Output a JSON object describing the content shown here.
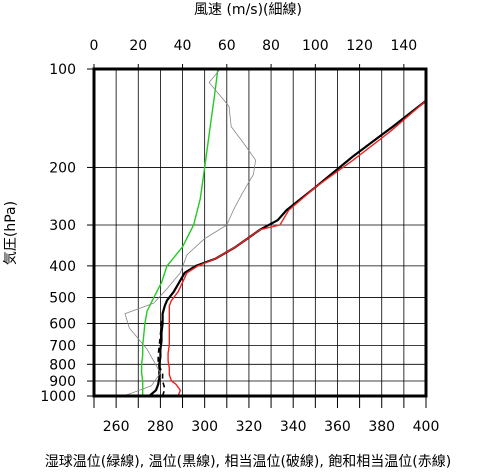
{
  "chart_data": {
    "type": "line",
    "top_axis": {
      "label": "風速 (m/s)(細線)",
      "range": [
        0,
        150
      ],
      "ticks": [
        0,
        20,
        40,
        60,
        80,
        100,
        120,
        140
      ]
    },
    "bottom_axis": {
      "label": "湿球温位(緑線), 温位(黒線), 相当温位(破線), 飽和相当温位(赤線)",
      "range": [
        250,
        400
      ],
      "ticks": [
        260,
        280,
        300,
        320,
        340,
        360,
        380,
        400
      ],
      "minor_gridlines": [
        250,
        270,
        290,
        310,
        330,
        350,
        370,
        390
      ]
    },
    "y_axis": {
      "label": "気圧(hPa)",
      "scale": "log",
      "reversed": true,
      "range": [
        100,
        1000
      ],
      "ticks": [
        100,
        200,
        300,
        400,
        500,
        600,
        700,
        800,
        900,
        1000
      ]
    },
    "grid": true,
    "series": [
      {
        "name": "湿球温位",
        "color": "#22cc22",
        "style": "solid",
        "axis": "bottom",
        "points": [
          [
            272,
            1000
          ],
          [
            272,
            950
          ],
          [
            272,
            900
          ],
          [
            271.5,
            850
          ],
          [
            271.5,
            800
          ],
          [
            272,
            750
          ],
          [
            272,
            700
          ],
          [
            272.5,
            650
          ],
          [
            273,
            600
          ],
          [
            274,
            550
          ],
          [
            277,
            500
          ],
          [
            280.5,
            450
          ],
          [
            283,
            400
          ],
          [
            290,
            350
          ],
          [
            295,
            300
          ],
          [
            298,
            250
          ],
          [
            300,
            200
          ],
          [
            302.5,
            150
          ],
          [
            304.5,
            120
          ],
          [
            306,
            100
          ]
        ]
      },
      {
        "name": "温位",
        "color": "#000000",
        "style": "solid",
        "axis": "bottom",
        "points": [
          [
            275,
            1000
          ],
          [
            278,
            960
          ],
          [
            279,
            920
          ],
          [
            279.5,
            880
          ],
          [
            279.5,
            840
          ],
          [
            279.5,
            800
          ],
          [
            280,
            760
          ],
          [
            280,
            720
          ],
          [
            280.5,
            680
          ],
          [
            280.5,
            640
          ],
          [
            281,
            600
          ],
          [
            281,
            560
          ],
          [
            282,
            530
          ],
          [
            283,
            510
          ],
          [
            286,
            480
          ],
          [
            291,
            420
          ],
          [
            296,
            400
          ],
          [
            305,
            380
          ],
          [
            314,
            350
          ],
          [
            325,
            310
          ],
          [
            333,
            290
          ],
          [
            337,
            270
          ],
          [
            350,
            230
          ],
          [
            367,
            185
          ],
          [
            385,
            150
          ],
          [
            400,
            125
          ]
        ]
      },
      {
        "name": "相当温位",
        "color": "#000000",
        "style": "dashed",
        "axis": "bottom",
        "points": [
          [
            281,
            1000
          ],
          [
            282,
            950
          ],
          [
            281,
            900
          ],
          [
            281,
            850
          ],
          [
            279,
            800
          ],
          [
            279,
            750
          ],
          [
            279.5,
            700
          ],
          [
            280,
            650
          ],
          [
            280.5,
            600
          ],
          [
            281,
            560
          ],
          [
            282,
            530
          ]
        ]
      },
      {
        "name": "飽和相当温位",
        "color": "#ee2222",
        "style": "solid",
        "axis": "bottom",
        "points": [
          [
            288,
            1000
          ],
          [
            289,
            960
          ],
          [
            287,
            920
          ],
          [
            285,
            900
          ],
          [
            284,
            860
          ],
          [
            284,
            820
          ],
          [
            283.5,
            780
          ],
          [
            283.5,
            740
          ],
          [
            284,
            700
          ],
          [
            284,
            650
          ],
          [
            284,
            600
          ],
          [
            284,
            560
          ],
          [
            284,
            530
          ],
          [
            285,
            510
          ],
          [
            288,
            480
          ],
          [
            292,
            420
          ],
          [
            297,
            400
          ],
          [
            305,
            380
          ],
          [
            314,
            350
          ],
          [
            325,
            310
          ],
          [
            334,
            300
          ],
          [
            338,
            270
          ],
          [
            350,
            230
          ],
          [
            367,
            190
          ],
          [
            384,
            155
          ],
          [
            400,
            125
          ]
        ]
      },
      {
        "name": "風速",
        "color": "#888888",
        "style": "solid-thin",
        "axis": "top",
        "points": [
          [
            13,
            1000
          ],
          [
            17,
            980
          ],
          [
            26,
            930
          ],
          [
            30,
            850
          ],
          [
            24,
            720
          ],
          [
            16,
            620
          ],
          [
            14,
            560
          ],
          [
            27,
            520
          ],
          [
            33,
            470
          ],
          [
            39,
            420
          ],
          [
            42,
            370
          ],
          [
            50,
            330
          ],
          [
            60,
            300
          ],
          [
            63,
            270
          ],
          [
            67,
            240
          ],
          [
            72,
            210
          ],
          [
            73,
            190
          ],
          [
            68,
            170
          ],
          [
            62,
            150
          ],
          [
            61,
            130
          ],
          [
            52,
            110
          ],
          [
            57,
            100
          ]
        ]
      }
    ]
  }
}
